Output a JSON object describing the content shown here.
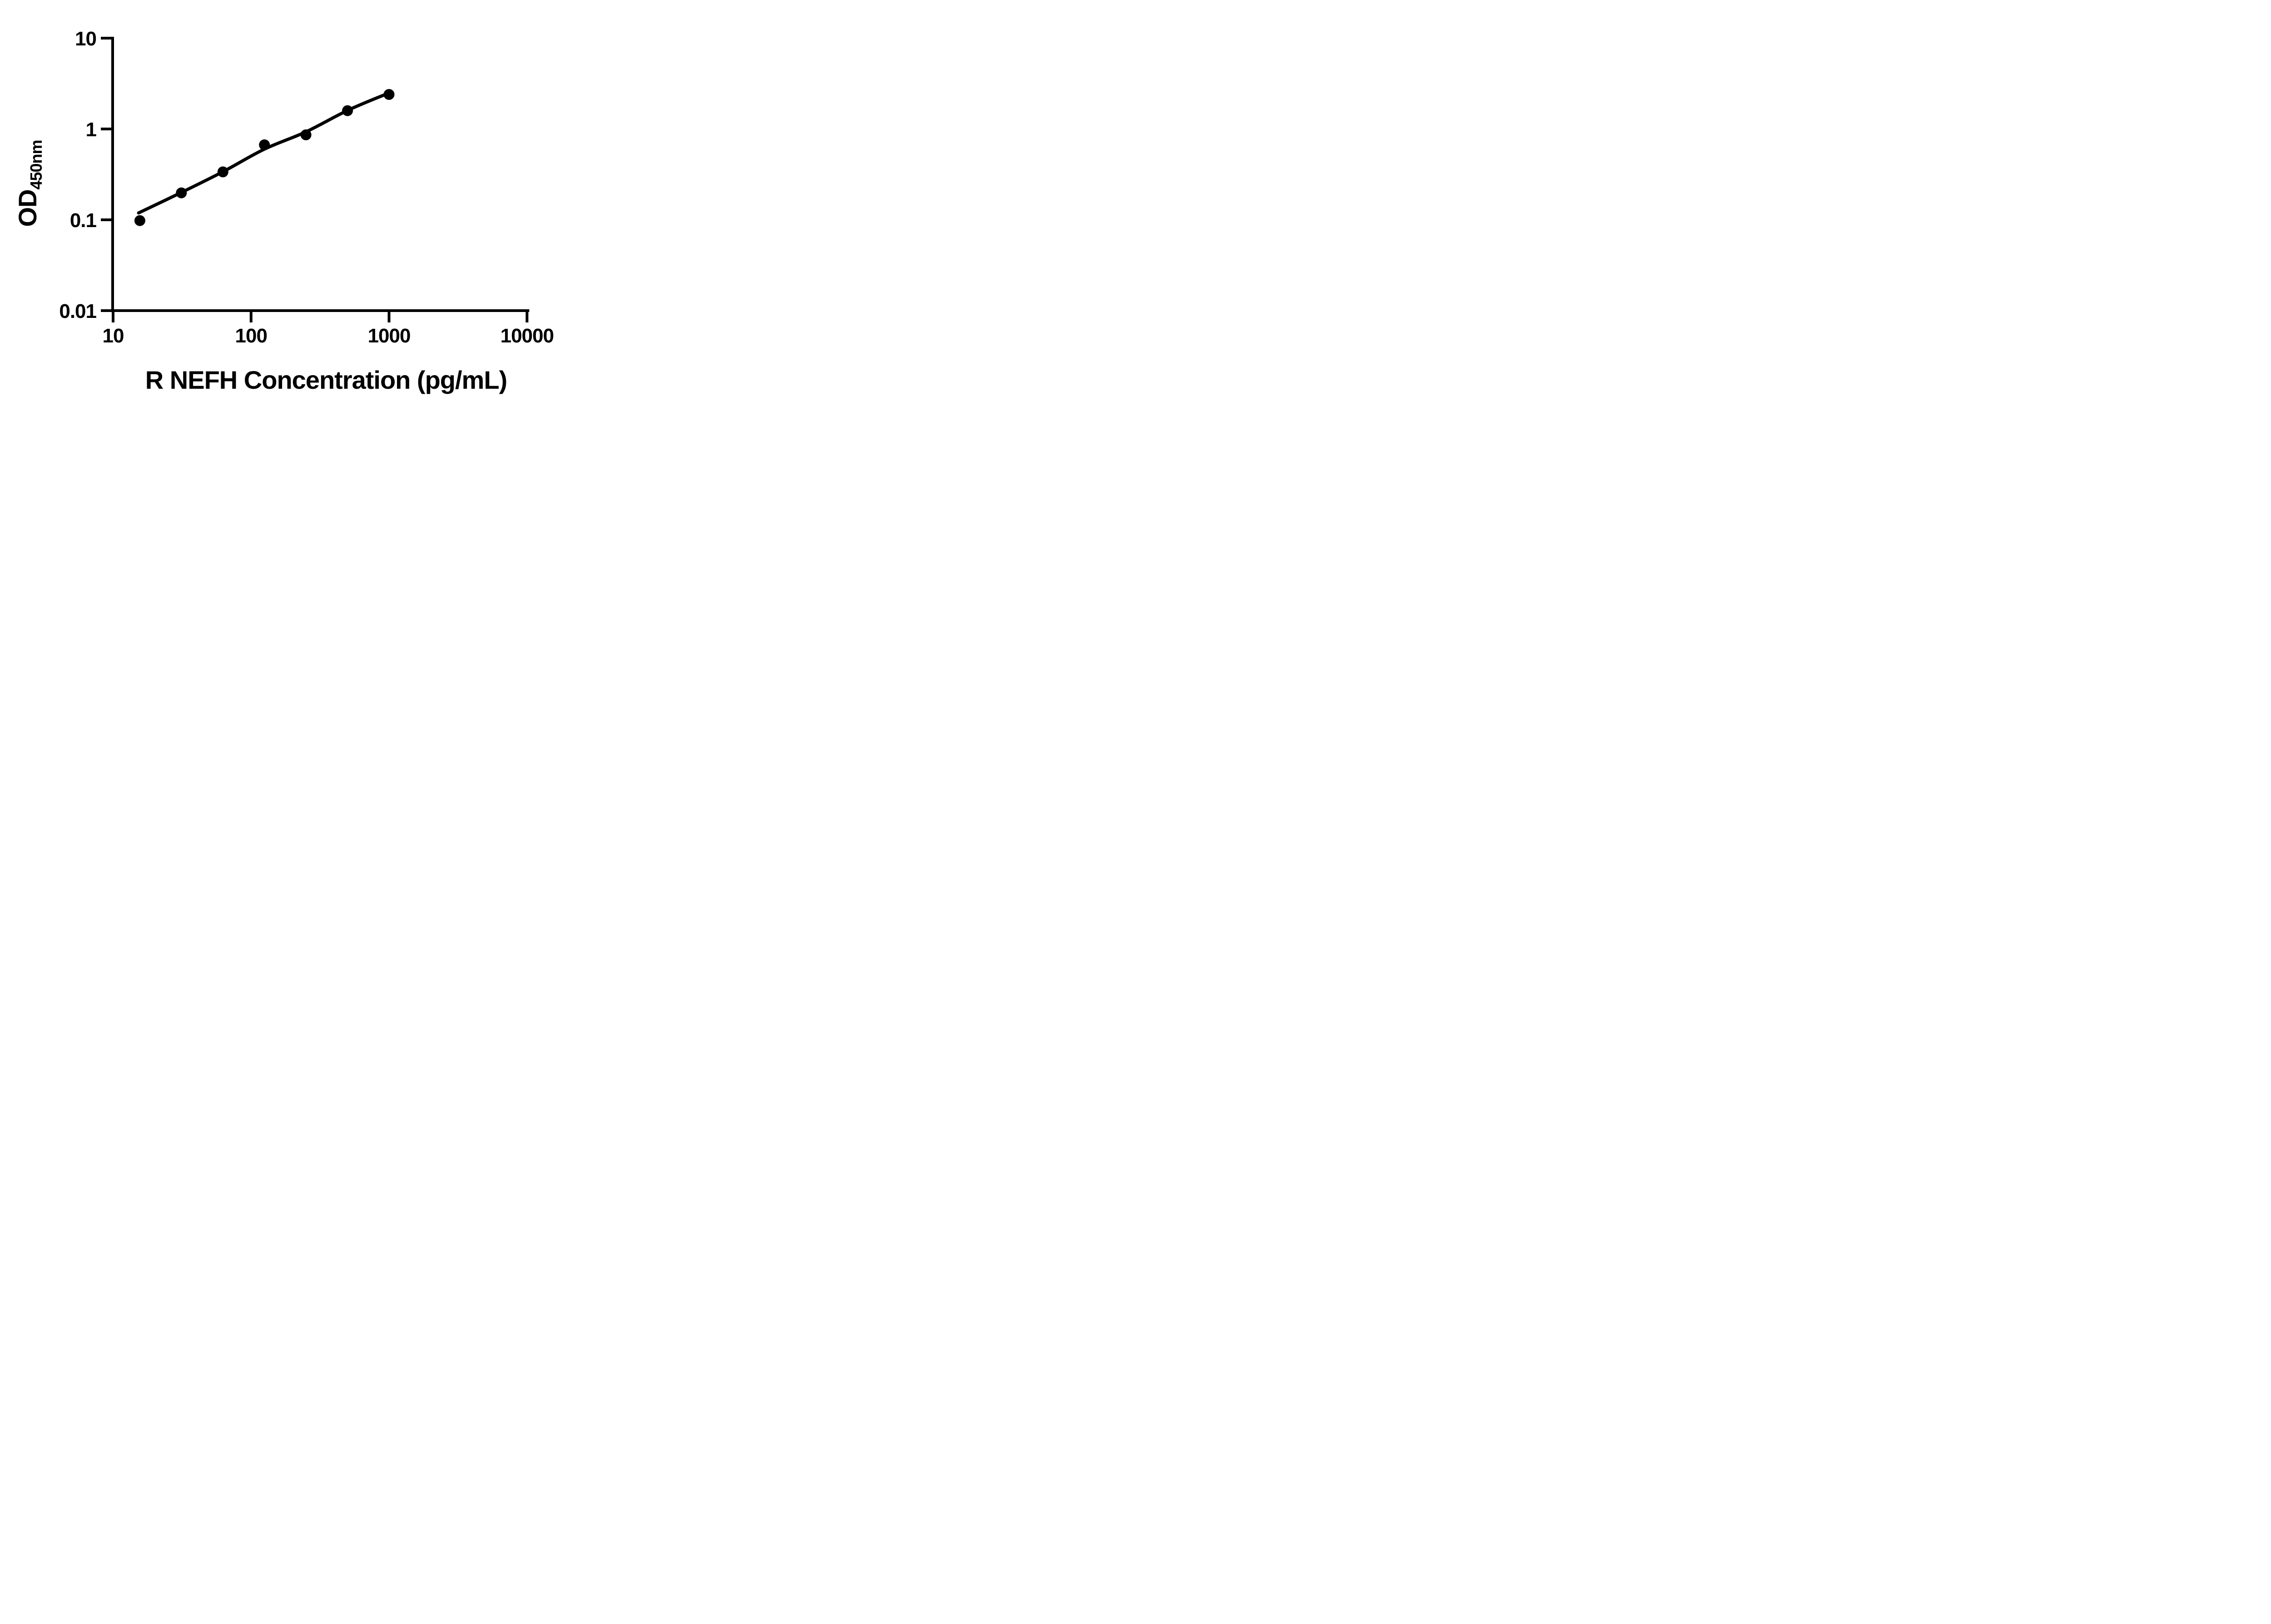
{
  "figure": {
    "background_color": "#ffffff",
    "foreground_color": "#000000"
  },
  "chart_data": {
    "type": "scatter",
    "title": "",
    "xlabel": "R NEFH Concentration (pg/mL)",
    "ylabel_main": "OD",
    "ylabel_sub": "450nm",
    "x_scale": "log",
    "y_scale": "log",
    "xlim": [
      10,
      10000
    ],
    "ylim": [
      0.01,
      10
    ],
    "x_tick_values": [
      10,
      100,
      1000,
      10000
    ],
    "x_tick_labels": [
      "10",
      "100",
      "1000",
      "10000"
    ],
    "y_tick_values": [
      10,
      1,
      0.1,
      0.01
    ],
    "y_tick_labels": [
      "10",
      "1",
      "0.1",
      "0.01"
    ],
    "grid": false,
    "legend": null,
    "series": [
      {
        "name": "standard-curve-points",
        "x": [
          15.625,
          31.25,
          62.5,
          125,
          250,
          500,
          1000
        ],
        "y": [
          0.098,
          0.198,
          0.337,
          0.669,
          0.862,
          1.59,
          2.4
        ],
        "marker": "circle",
        "marker_color": "#000000"
      }
    ],
    "fit_curve": {
      "name": "four-parameter-fit-line",
      "x": [
        15.3,
        31.25,
        62.5,
        125,
        250,
        500,
        940
      ],
      "y": [
        0.119,
        0.2,
        0.338,
        0.6,
        0.93,
        1.6,
        2.4
      ],
      "line_color": "#000000"
    }
  }
}
